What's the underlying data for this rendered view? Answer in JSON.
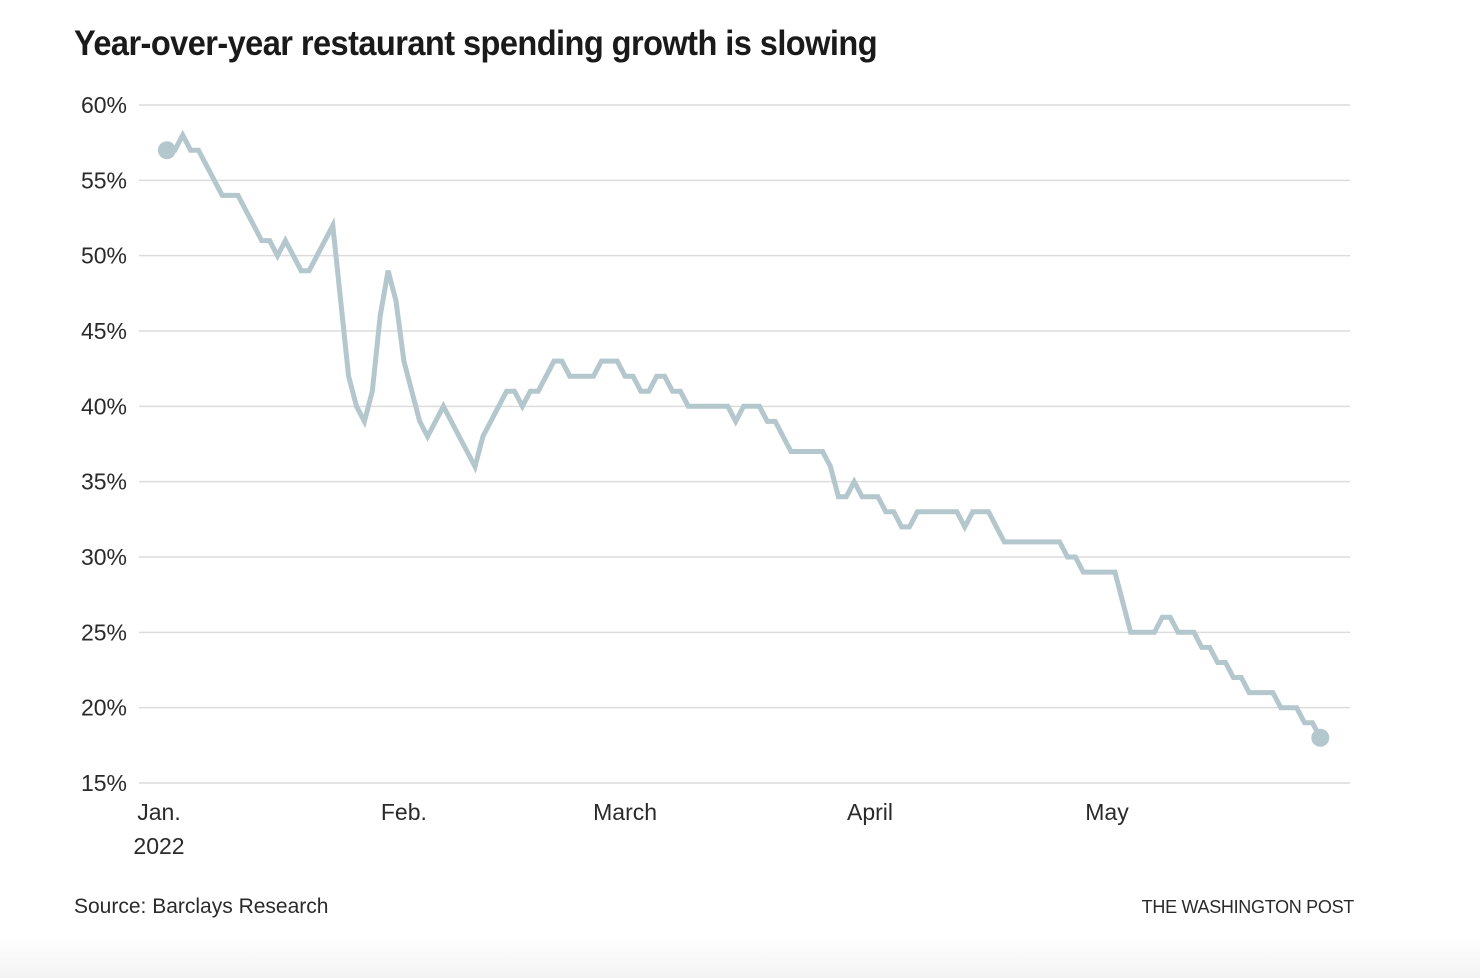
{
  "header": {
    "title": "Year-over-year restaurant spending growth is slowing"
  },
  "footer": {
    "source": "Source: Barclays Research",
    "credit": "THE WASHINGTON POST"
  },
  "colors": {
    "line": "#b3c7cc",
    "grid": "#dcdcdc",
    "text": "#2a2a2a"
  },
  "chart_data": {
    "type": "line",
    "title": "Year-over-year restaurant spending growth is slowing",
    "xlabel": "",
    "ylabel": "",
    "x_unit": "day of year 2022",
    "ylim": [
      15,
      60
    ],
    "xlim_day": [
      1,
      152
    ],
    "grid": true,
    "legend": "none",
    "yticks": [
      {
        "value": 60,
        "label": "60%"
      },
      {
        "value": 55,
        "label": "55%"
      },
      {
        "value": 50,
        "label": "50%"
      },
      {
        "value": 45,
        "label": "45%"
      },
      {
        "value": 40,
        "label": "40%"
      },
      {
        "value": 35,
        "label": "35%"
      },
      {
        "value": 30,
        "label": "30%"
      },
      {
        "value": 25,
        "label": "25%"
      },
      {
        "value": 20,
        "label": "20%"
      },
      {
        "value": 15,
        "label": "15%"
      }
    ],
    "xticks": [
      {
        "day": 1,
        "label": "Jan.",
        "sublabel": "2022"
      },
      {
        "day": 32,
        "label": "Feb."
      },
      {
        "day": 60,
        "label": "March"
      },
      {
        "day": 91,
        "label": "April"
      },
      {
        "day": 121,
        "label": "May"
      }
    ],
    "series": [
      {
        "name": "Year-over-year restaurant spending growth (%)",
        "start_day": 2,
        "end_markers": true,
        "values": [
          57,
          57,
          58,
          57,
          57,
          56,
          55,
          54,
          54,
          54,
          53,
          52,
          51,
          51,
          50,
          51,
          50,
          49,
          49,
          50,
          51,
          52,
          47,
          42,
          40,
          39,
          41,
          46,
          49,
          47,
          43,
          41,
          39,
          38,
          39,
          40,
          39,
          38,
          37,
          36,
          38,
          39,
          40,
          41,
          41,
          40,
          41,
          41,
          42,
          43,
          43,
          42,
          42,
          42,
          42,
          43,
          43,
          43,
          42,
          42,
          41,
          41,
          42,
          42,
          41,
          41,
          40,
          40,
          40,
          40,
          40,
          40,
          39,
          40,
          40,
          40,
          39,
          39,
          38,
          37,
          37,
          37,
          37,
          37,
          36,
          34,
          34,
          35,
          34,
          34,
          34,
          33,
          33,
          32,
          32,
          33,
          33,
          33,
          33,
          33,
          33,
          32,
          33,
          33,
          33,
          32,
          31,
          31,
          31,
          31,
          31,
          31,
          31,
          31,
          30,
          30,
          29,
          29,
          29,
          29,
          29,
          27,
          25,
          25,
          25,
          25,
          26,
          26,
          25,
          25,
          25,
          24,
          24,
          23,
          23,
          22,
          22,
          21,
          21,
          21,
          21,
          20,
          20,
          20,
          19,
          19,
          18
        ]
      }
    ]
  }
}
